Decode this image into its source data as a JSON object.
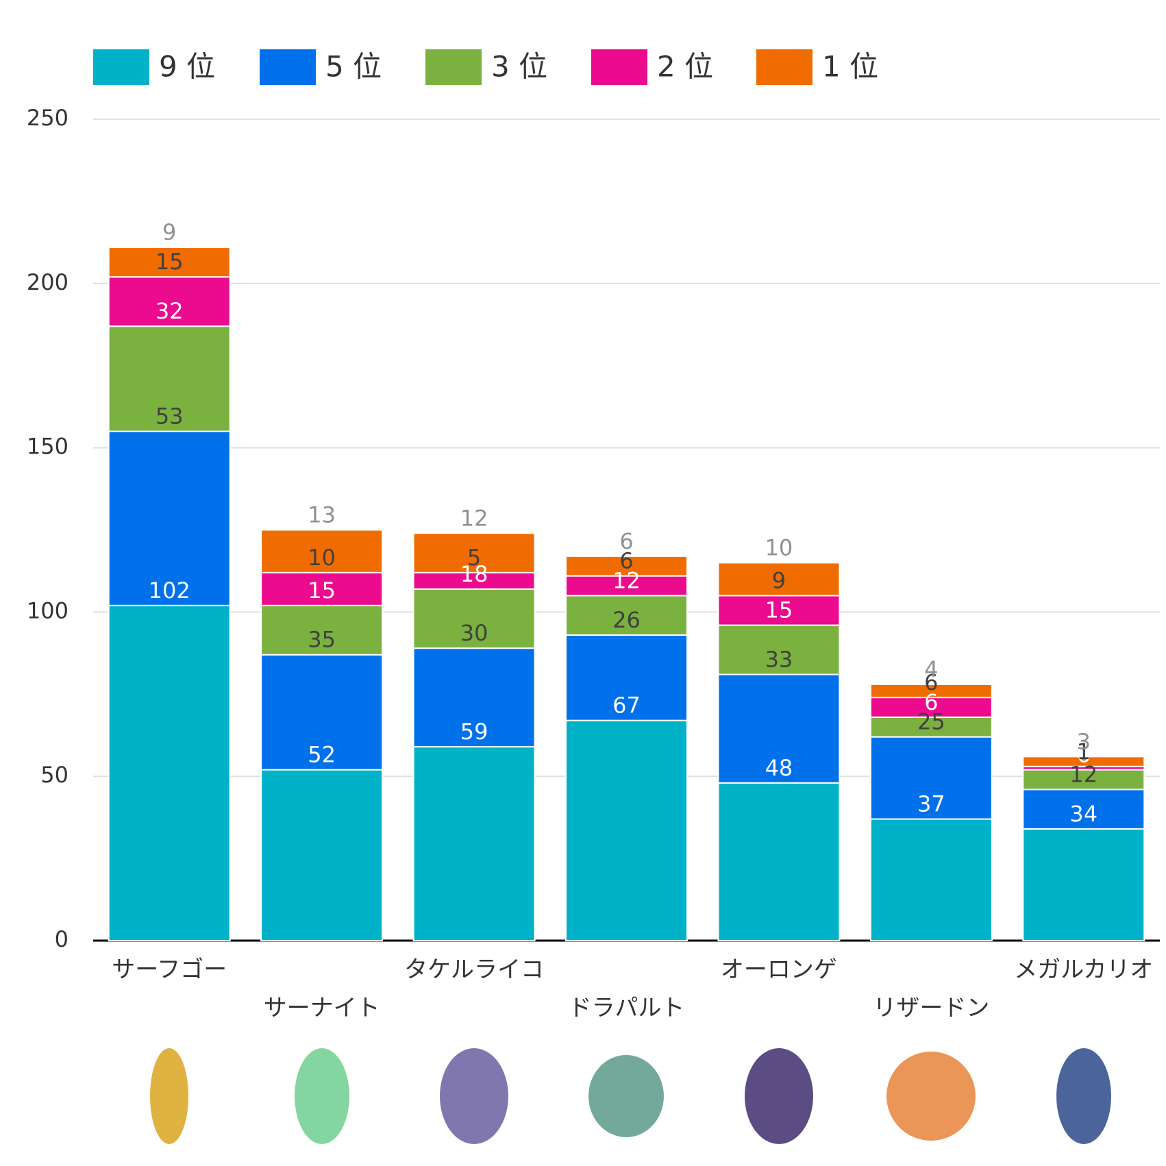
{
  "chart_data": {
    "type": "stacked_bar",
    "categories": [
      "サーフゴー",
      "サーナイト",
      "タケルライコ",
      "ドラパルト",
      "オーロンゲ",
      "リザードン",
      "メガルカリオ"
    ],
    "series": [
      {
        "name": "9 位",
        "color": "#00b2c8",
        "label_color": "#ffffff",
        "values": [
          102,
          52,
          59,
          67,
          48,
          37,
          34
        ]
      },
      {
        "name": "5 位",
        "color": "#0070eb",
        "label_color": "#404040",
        "values": [
          53,
          35,
          30,
          26,
          33,
          25,
          12
        ]
      },
      {
        "name": "3 位",
        "color": "#7bb13f",
        "label_color": "#ffffff",
        "values": [
          32,
          15,
          18,
          12,
          15,
          6,
          6
        ]
      },
      {
        "name": "2 位",
        "color": "#ec0a8f",
        "label_color": "#404040",
        "values": [
          15,
          10,
          5,
          6,
          9,
          6,
          1
        ]
      },
      {
        "name": "1 位",
        "color": "#f06c00",
        "label_color": "#909090",
        "values": [
          9,
          13,
          12,
          6,
          10,
          4,
          3
        ]
      }
    ],
    "ylim": [
      0,
      250
    ],
    "yticks": [
      0,
      50,
      100,
      150,
      200,
      250
    ],
    "grid": true
  }
}
